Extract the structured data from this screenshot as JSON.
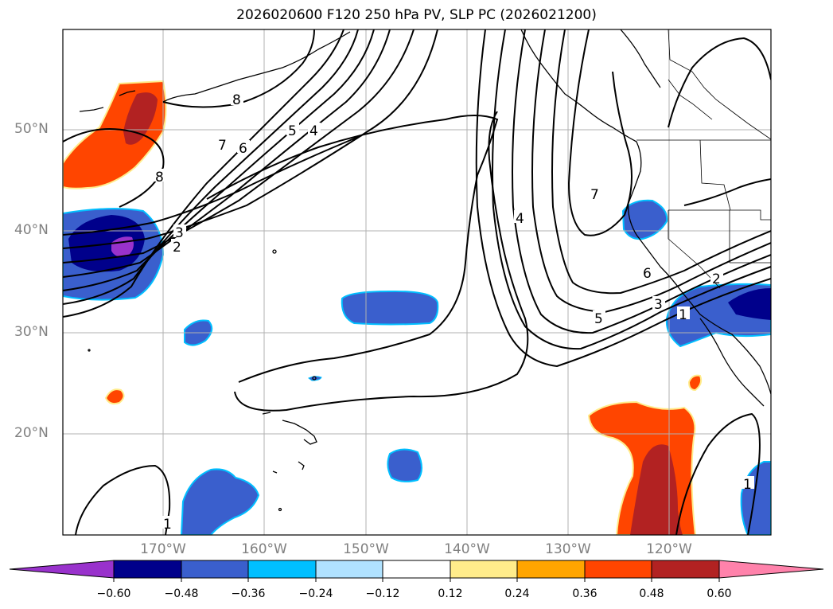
{
  "title": "2026020600 F120 250 hPa PV, SLP PC (2026021200)",
  "lat_labels": [
    "50°N",
    "40°N",
    "30°N",
    "20°N"
  ],
  "lon_labels": [
    "170°W",
    "160°W",
    "150°W",
    "140°W",
    "130°W",
    "120°W"
  ],
  "colorbar": {
    "ticks": [
      "−0.60",
      "−0.48",
      "−0.36",
      "−0.24",
      "−0.12",
      "0.12",
      "0.24",
      "0.36",
      "0.48",
      "0.60"
    ],
    "colors": [
      "#9932cc",
      "#00008b",
      "#3a5fcd",
      "#00bfff",
      "#b0e2ff",
      "#ffffff",
      "#ffec8b",
      "#ffa500",
      "#ff4500",
      "#b22222",
      "#ff82ab"
    ]
  },
  "contour_labels": [
    "8",
    "7",
    "6",
    "5",
    "4",
    "3",
    "2",
    "8",
    "4",
    "7",
    "6",
    "5",
    "3",
    "2",
    "1",
    "1",
    "1"
  ]
}
